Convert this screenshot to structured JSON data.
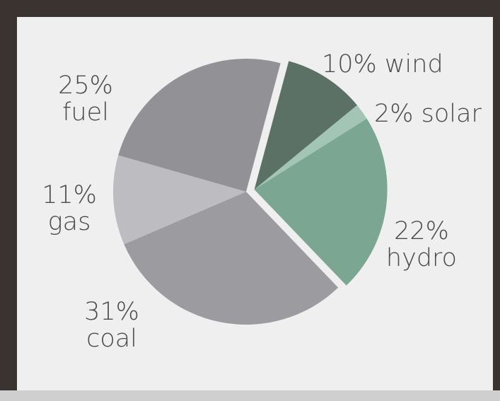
{
  "chart_data": {
    "type": "pie",
    "title": "",
    "slices": [
      {
        "label": "wind",
        "value": 10,
        "text_value": "10%",
        "color": "#5b7165",
        "exploded": true
      },
      {
        "label": "solar",
        "value": 2,
        "text_value": "2%",
        "color": "#a3c5b5",
        "exploded": true
      },
      {
        "label": "hydro",
        "value": 22,
        "text_value": "22%",
        "color": "#7aa692",
        "exploded": true
      },
      {
        "label": "coal",
        "value": 31,
        "text_value": "31%",
        "color": "#9c9b9f",
        "exploded": false
      },
      {
        "label": "gas",
        "value": 11,
        "text_value": "11%",
        "color": "#bdbcc1",
        "exploded": false
      },
      {
        "label": "fuel",
        "value": 25,
        "text_value": "25%",
        "color": "#929196",
        "exploded": false
      }
    ],
    "legend": "none"
  },
  "colors": {
    "background_frame": "#3a3330",
    "panel": "#efefef",
    "label_text": "#4a4a4a"
  }
}
